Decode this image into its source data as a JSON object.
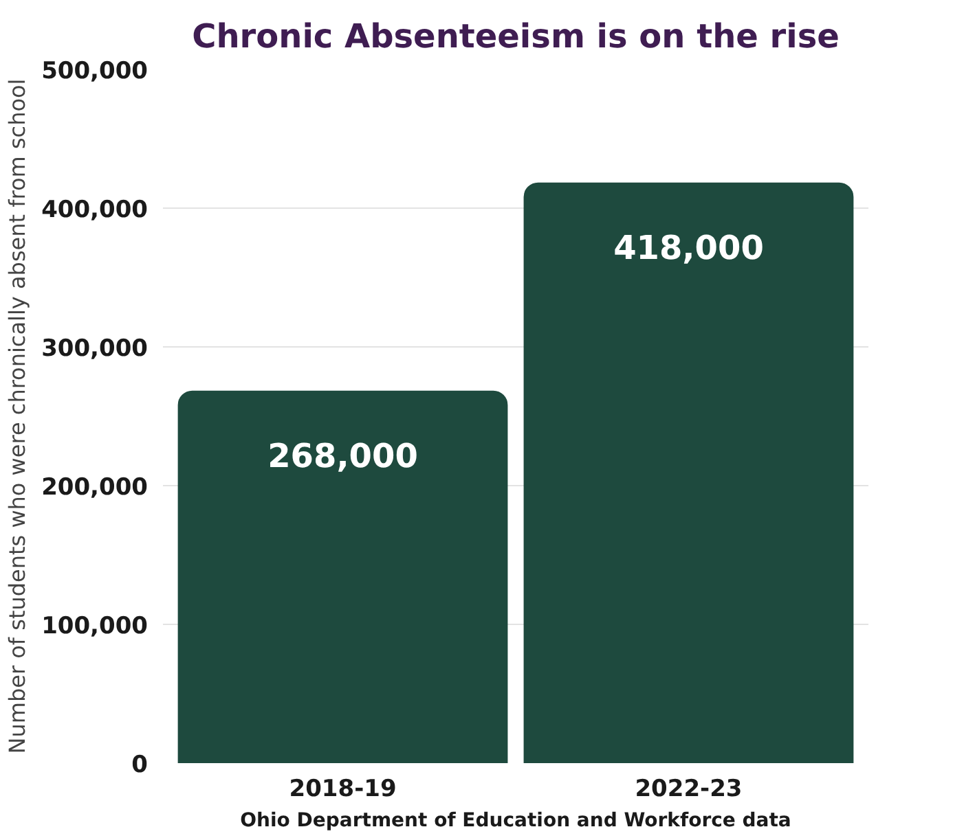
{
  "chart_data": {
    "type": "bar",
    "title": "Chronic Absenteeism is on the rise",
    "ylabel": "Number of students who were chronically absent from school",
    "categories": [
      "2018-19",
      "2022-23"
    ],
    "values": [
      268000,
      418000
    ],
    "color": "#1e4a3e",
    "ylim": [
      0,
      500000
    ],
    "yticks": [
      {
        "value": 0,
        "label": "0"
      },
      {
        "value": 100000,
        "label": "100,000"
      },
      {
        "value": 200000,
        "label": "200,000"
      },
      {
        "value": 300000,
        "label": "300,000"
      },
      {
        "value": 400000,
        "label": "400,000"
      },
      {
        "value": 500000,
        "label": "500,000"
      }
    ],
    "grid": "y",
    "value_labels": [
      "268,000",
      "418,000"
    ],
    "annotations": [
      "Ohio Department of Education and Workforce data"
    ]
  }
}
